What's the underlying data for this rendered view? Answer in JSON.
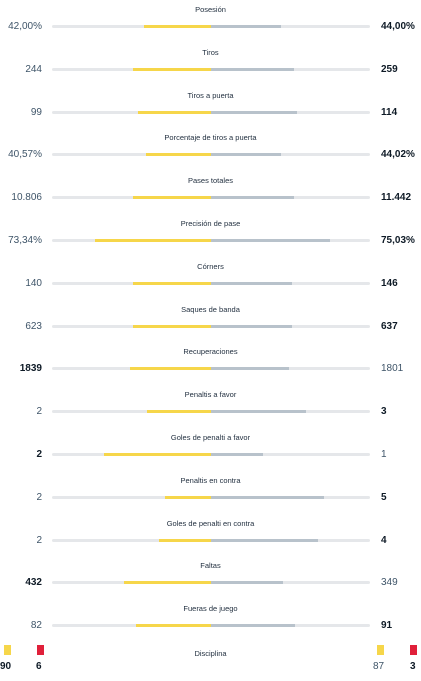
{
  "stats": [
    {
      "label": "Posesión",
      "home": "42,00%",
      "away": "44,00%",
      "home_bold": false,
      "away_bold": true,
      "home_fill": 0.42,
      "away_fill": 0.44
    },
    {
      "label": "Tiros",
      "home": "244",
      "away": "259",
      "home_bold": false,
      "away_bold": true,
      "home_fill": 0.49,
      "away_fill": 0.52
    },
    {
      "label": "Tiros a puerta",
      "home": "99",
      "away": "114",
      "home_bold": false,
      "away_bold": true,
      "home_fill": 0.46,
      "away_fill": 0.54
    },
    {
      "label": "Porcentaje de tiros a puerta",
      "home": "40,57%",
      "away": "44,02%",
      "home_bold": false,
      "away_bold": true,
      "home_fill": 0.41,
      "away_fill": 0.44
    },
    {
      "label": "Pases totales",
      "home": "10.806",
      "away": "11.442",
      "home_bold": false,
      "away_bold": true,
      "home_fill": 0.49,
      "away_fill": 0.52
    },
    {
      "label": "Precisión de pase",
      "home": "73,34%",
      "away": "75,03%",
      "home_bold": false,
      "away_bold": true,
      "home_fill": 0.73,
      "away_fill": 0.75
    },
    {
      "label": "Córners",
      "home": "140",
      "away": "146",
      "home_bold": false,
      "away_bold": true,
      "home_fill": 0.49,
      "away_fill": 0.51
    },
    {
      "label": "Saques de banda",
      "home": "623",
      "away": "637",
      "home_bold": false,
      "away_bold": true,
      "home_fill": 0.49,
      "away_fill": 0.51
    },
    {
      "label": "Recuperaciones",
      "home": "1839",
      "away": "1801",
      "home_bold": true,
      "away_bold": false,
      "home_fill": 0.51,
      "away_fill": 0.49
    },
    {
      "label": "Penaltis a favor",
      "home": "2",
      "away": "3",
      "home_bold": false,
      "away_bold": true,
      "home_fill": 0.4,
      "away_fill": 0.6
    },
    {
      "label": "Goles de penalti a favor",
      "home": "2",
      "away": "1",
      "home_bold": true,
      "away_bold": false,
      "home_fill": 0.67,
      "away_fill": 0.33
    },
    {
      "label": "Penaltis en contra",
      "home": "2",
      "away": "5",
      "home_bold": false,
      "away_bold": true,
      "home_fill": 0.29,
      "away_fill": 0.71
    },
    {
      "label": "Goles de penalti en contra",
      "home": "2",
      "away": "4",
      "home_bold": false,
      "away_bold": true,
      "home_fill": 0.33,
      "away_fill": 0.67
    },
    {
      "label": "Faltas",
      "home": "432",
      "away": "349",
      "home_bold": true,
      "away_bold": false,
      "home_fill": 0.55,
      "away_fill": 0.45
    },
    {
      "label": "Fueras de juego",
      "home": "82",
      "away": "91",
      "home_bold": false,
      "away_bold": true,
      "home_fill": 0.47,
      "away_fill": 0.53
    }
  ],
  "discipline": {
    "label": "Disciplina",
    "home_yellow": "90",
    "home_red": "6",
    "away_yellow": "87",
    "away_red": "3"
  },
  "colors": {
    "home_bar": "#f6d64a",
    "away_bar": "#b8c2cb",
    "track": "#e5e7ea",
    "yellow_card": "#f6d64a",
    "red_card": "#e0203a"
  }
}
